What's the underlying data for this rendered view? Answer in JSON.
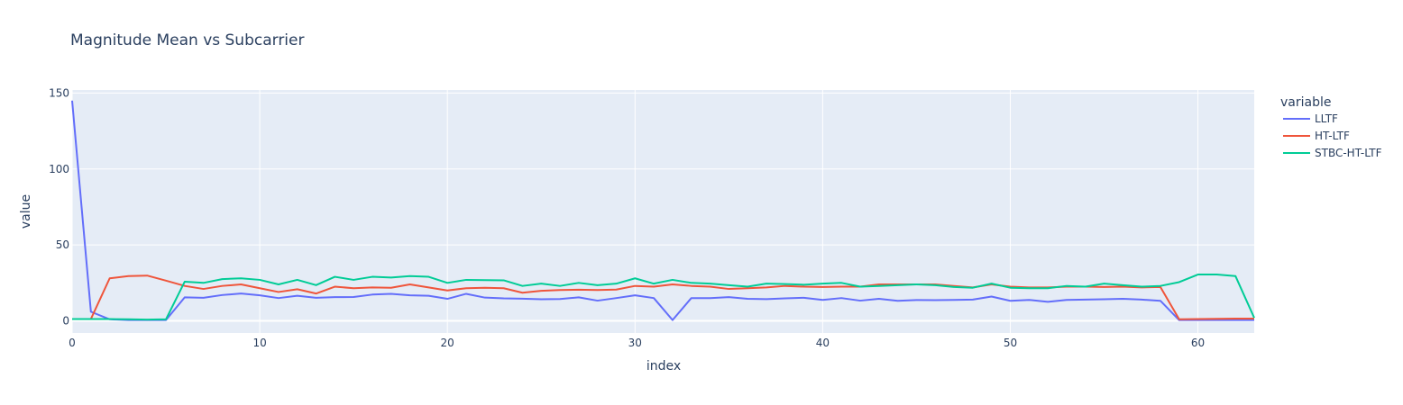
{
  "chart_data": {
    "type": "line",
    "title": "Magnitude Mean vs Subcarrier",
    "xlabel": "index",
    "ylabel": "value",
    "xlim": [
      0,
      63
    ],
    "ylim": [
      -8,
      152
    ],
    "xticks": [
      0,
      10,
      20,
      30,
      40,
      50,
      60
    ],
    "yticks": [
      0,
      50,
      100,
      150
    ],
    "grid": true,
    "legend": {
      "title": "variable",
      "placement": "right"
    },
    "colors": {
      "plot_bg": "#e5ecf6",
      "grid": "#ffffff",
      "text": "#2a3f5f"
    },
    "x": [
      0,
      1,
      2,
      3,
      4,
      5,
      6,
      7,
      8,
      9,
      10,
      11,
      12,
      13,
      14,
      15,
      16,
      17,
      18,
      19,
      20,
      21,
      22,
      23,
      24,
      25,
      26,
      27,
      28,
      29,
      30,
      31,
      32,
      33,
      34,
      35,
      36,
      37,
      38,
      39,
      40,
      41,
      42,
      43,
      44,
      45,
      46,
      47,
      48,
      49,
      50,
      51,
      52,
      53,
      54,
      55,
      56,
      57,
      58,
      59,
      60,
      61,
      62,
      63
    ],
    "series": [
      {
        "name": "LLTF",
        "color": "#636efa",
        "values": [
          145,
          6,
          1,
          0.5,
          0.5,
          0.5,
          15.5,
          15.2,
          17,
          18,
          16.8,
          15,
          16.5,
          15.2,
          15.6,
          15.7,
          17.3,
          17.8,
          16.8,
          16.5,
          14.5,
          17.8,
          15.3,
          14.8,
          14.6,
          14.2,
          14.4,
          15.5,
          13.3,
          15,
          16.8,
          15,
          0.5,
          15,
          15,
          15.6,
          14.5,
          14.3,
          14.8,
          15.2,
          13.8,
          15,
          13.3,
          14.5,
          13.2,
          13.7,
          13.6,
          13.8,
          14,
          16,
          13.2,
          13.8,
          12.5,
          13.8,
          14,
          14.2,
          14.5,
          14,
          13.2,
          0.5,
          0.5,
          0.5,
          0.5,
          0.5
        ]
      },
      {
        "name": "HT-LTF",
        "color": "#ef553b",
        "values": [
          1.2,
          1.2,
          28,
          29.5,
          29.8,
          26.5,
          23,
          21,
          23,
          24,
          21.5,
          19,
          20.8,
          18,
          22.5,
          21.5,
          22,
          21.8,
          24,
          22,
          20,
          21.5,
          21.8,
          21.5,
          18.5,
          19.8,
          20.3,
          20.5,
          20.3,
          20.6,
          23,
          22.5,
          24,
          23,
          22.5,
          21,
          21.5,
          22,
          23,
          22.5,
          22.3,
          22.5,
          22.5,
          24,
          24,
          24,
          24,
          23,
          22,
          24,
          22.5,
          22,
          22,
          22.5,
          22.5,
          22.3,
          22.5,
          22,
          22.3,
          1,
          1.2,
          1.3,
          1.5,
          1.5
        ]
      },
      {
        "name": "STBC-HT-LTF",
        "color": "#00cc96",
        "values": [
          1.2,
          1.2,
          1.2,
          1,
          0.8,
          1,
          25.8,
          25,
          27.5,
          28,
          27,
          24,
          27,
          23.5,
          29,
          27,
          29,
          28.5,
          29.5,
          29,
          25,
          27,
          26.8,
          26.7,
          23,
          24.5,
          23,
          25,
          23.5,
          24.5,
          28,
          24.5,
          27,
          25,
          24.5,
          23.5,
          22.5,
          24.5,
          24.2,
          23.8,
          24.5,
          25,
          22.5,
          23,
          23.5,
          24,
          23.5,
          22.3,
          21.8,
          24.5,
          21.8,
          21.5,
          21.5,
          23,
          22.5,
          24.5,
          23.5,
          22.5,
          23,
          25.5,
          30.5,
          30.5,
          29.5,
          2
        ]
      }
    ]
  }
}
